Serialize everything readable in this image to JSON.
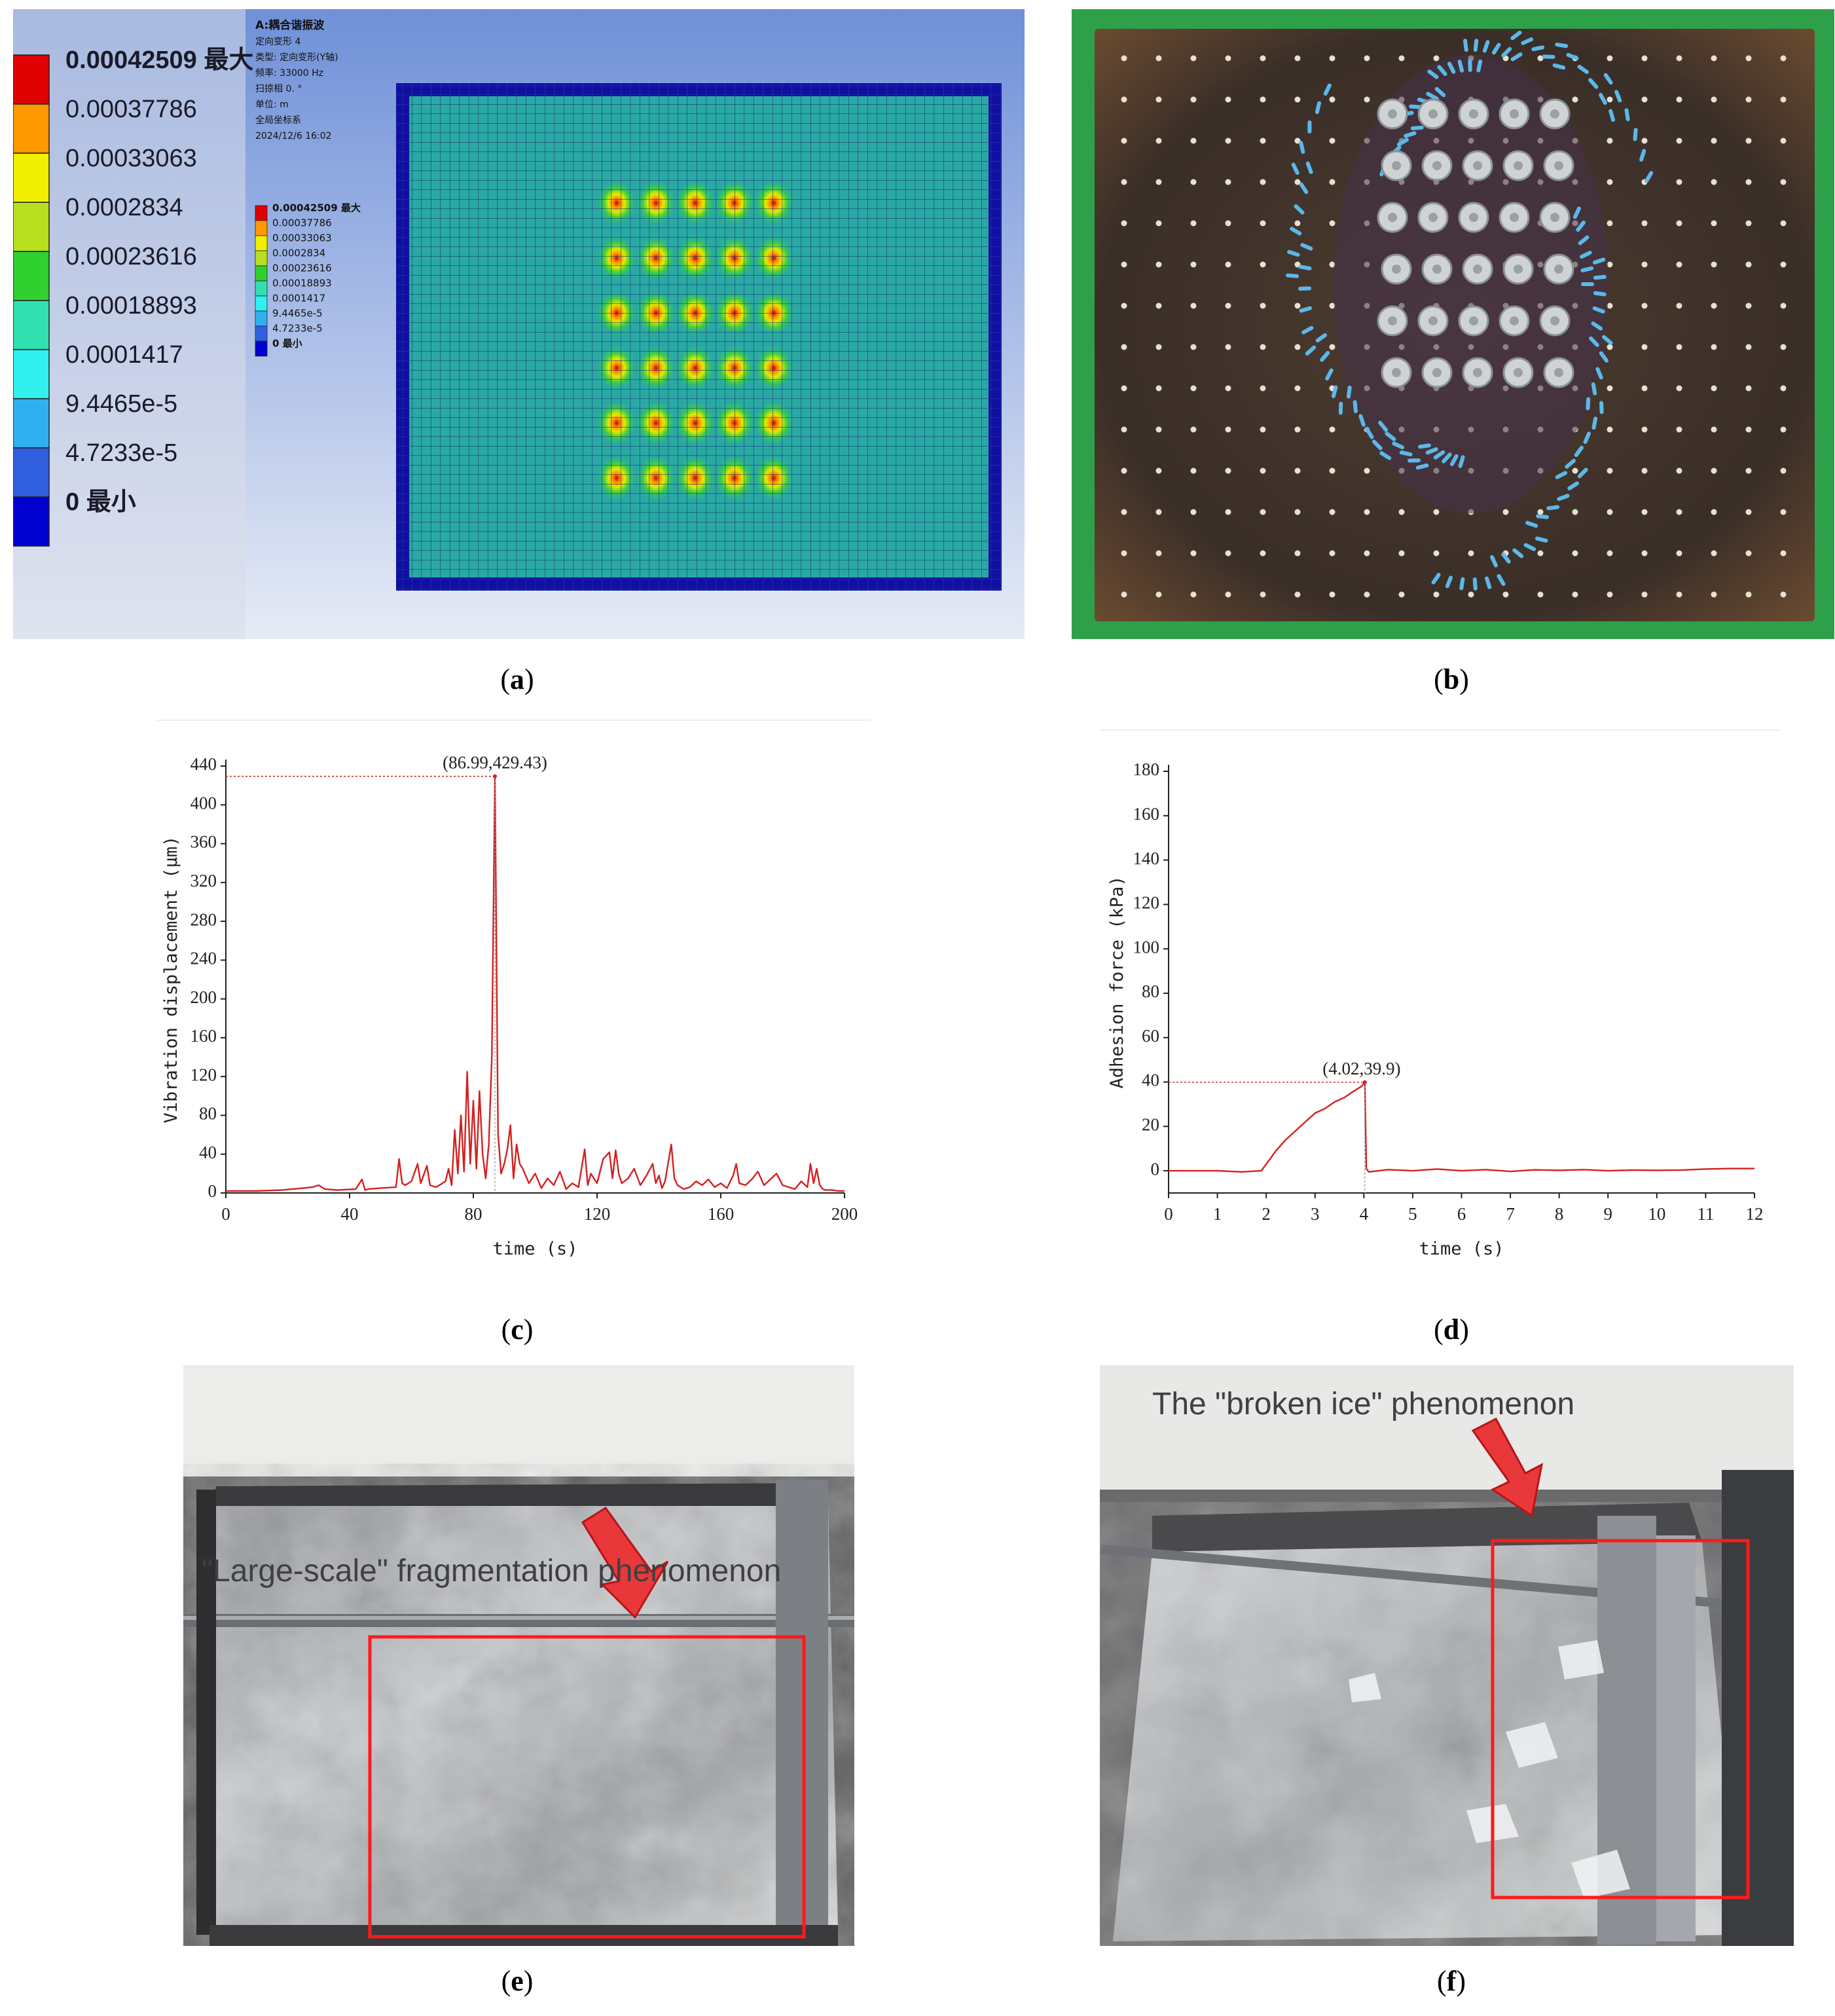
{
  "captions": {
    "a": "a",
    "b": "b",
    "c": "c",
    "d": "d",
    "e": "e",
    "f": "f"
  },
  "panel_a": {
    "header_lines": [
      "A:耦合谐振波",
      "定向变形 4",
      "类型: 定向变形(Y轴)",
      "频率: 33000   Hz",
      "扫掠相 0. °",
      "单位: m",
      "全局坐标系",
      "2024/12/6 16:02"
    ],
    "legend_labels": [
      "0.00042509 最大",
      "0.00037786",
      "0.00033063",
      "0.0002834",
      "0.00023616",
      "0.00018893",
      "0.0001417",
      "9.4465e-5",
      "4.7233e-5",
      "0 最小"
    ],
    "legend_colors": [
      "#e00000",
      "#ff9900",
      "#f0f000",
      "#b8e020",
      "#30d030",
      "#30e0b0",
      "#30f0f0",
      "#30b0f0",
      "#3060e0",
      "#0000d0"
    ]
  },
  "panel_e": {
    "annotation": "\"Large-scale\" fragmentation phenomenon"
  },
  "panel_f": {
    "annotation": "The \"broken ice\" phenomenon"
  },
  "chart_data": [
    {
      "type": "line",
      "panel": "c",
      "xlabel": "time (s)",
      "ylabel": "Vibration displacement (μm)",
      "xlim": [
        0,
        200
      ],
      "ylim": [
        0,
        440
      ],
      "xticks": [
        0,
        40,
        80,
        120,
        160,
        200
      ],
      "yticks": [
        0,
        40,
        80,
        120,
        160,
        200,
        240,
        280,
        320,
        360,
        400,
        440
      ],
      "annotation": "(86.99,429.43)",
      "peak": [
        86.99,
        429.43
      ],
      "color": "#d42020",
      "x": [
        0,
        10,
        18,
        25,
        28,
        30,
        32,
        36,
        42,
        44,
        45,
        46,
        50,
        55,
        56,
        57,
        58,
        60,
        62,
        63,
        65,
        66,
        68,
        70,
        71,
        72,
        73,
        74,
        75,
        76,
        77,
        78,
        79,
        80,
        81,
        82,
        83,
        84,
        85,
        86,
        86.99,
        88,
        89,
        90,
        91,
        92,
        93,
        94,
        95,
        96,
        98,
        100,
        102,
        104,
        106,
        108,
        110,
        112,
        114,
        116,
        117,
        118,
        120,
        122,
        124,
        125,
        126,
        127,
        128,
        130,
        132,
        134,
        136,
        138,
        139,
        140,
        141,
        142,
        144,
        145,
        146,
        148,
        150,
        152,
        154,
        156,
        158,
        160,
        162,
        164,
        165,
        166,
        168,
        170,
        172,
        174,
        176,
        178,
        180,
        182,
        184,
        186,
        188,
        189,
        190,
        191,
        192,
        193,
        194,
        196,
        198,
        200
      ],
      "y": [
        2,
        2,
        3,
        5,
        6,
        8,
        4,
        3,
        4,
        14,
        3,
        4,
        5,
        6,
        35,
        10,
        8,
        12,
        30,
        10,
        28,
        8,
        6,
        10,
        12,
        25,
        8,
        65,
        20,
        80,
        22,
        125,
        30,
        95,
        25,
        105,
        40,
        15,
        50,
        140,
        429.43,
        60,
        20,
        30,
        45,
        70,
        15,
        50,
        30,
        25,
        10,
        20,
        5,
        15,
        8,
        22,
        4,
        10,
        6,
        45,
        8,
        20,
        10,
        35,
        42,
        15,
        44,
        20,
        10,
        15,
        25,
        8,
        18,
        30,
        10,
        18,
        5,
        12,
        50,
        15,
        8,
        4,
        6,
        12,
        8,
        14,
        6,
        10,
        5,
        18,
        30,
        10,
        8,
        14,
        22,
        8,
        14,
        20,
        8,
        6,
        4,
        12,
        6,
        30,
        10,
        25,
        8,
        4,
        3,
        3,
        2,
        2
      ]
    },
    {
      "type": "line",
      "panel": "d",
      "xlabel": "time (s)",
      "ylabel": "Adhesion force (kPa)",
      "xlim": [
        0,
        12
      ],
      "ylim": [
        -10,
        180
      ],
      "xticks": [
        0,
        1,
        2,
        3,
        4,
        5,
        6,
        7,
        8,
        9,
        10,
        11,
        12
      ],
      "yticks": [
        0,
        20,
        40,
        60,
        80,
        100,
        120,
        140,
        160,
        180
      ],
      "annotation": "(4.02,39.9)",
      "peak": [
        4.02,
        39.9
      ],
      "color": "#d42020",
      "x": [
        0,
        0.5,
        1,
        1.5,
        1.9,
        2.0,
        2.2,
        2.4,
        2.6,
        2.8,
        3.0,
        3.2,
        3.4,
        3.6,
        3.8,
        3.95,
        4.02,
        4.05,
        4.1,
        4.5,
        5,
        5.5,
        6,
        6.5,
        7,
        7.5,
        8,
        8.5,
        9,
        9.5,
        10,
        10.5,
        11,
        11.5,
        12
      ],
      "y": [
        0,
        0,
        0,
        -0.5,
        0,
        3,
        9,
        14,
        18,
        22,
        26,
        28,
        31,
        33,
        36,
        38,
        39.9,
        1,
        -0.5,
        0.5,
        0,
        0.8,
        0,
        0.5,
        -0.3,
        0.4,
        0.2,
        0.5,
        0,
        0.3,
        0.2,
        0.3,
        0.8,
        1,
        1
      ]
    }
  ]
}
